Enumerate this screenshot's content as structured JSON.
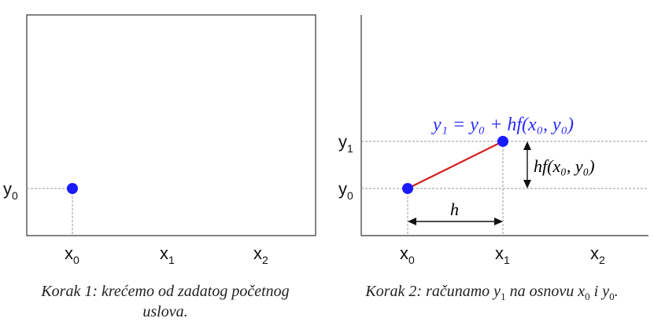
{
  "panel1": {
    "x_labels": [
      {
        "base": "x",
        "sub": "0"
      },
      {
        "base": "x",
        "sub": "1"
      },
      {
        "base": "x",
        "sub": "2"
      }
    ],
    "y_labels": [
      {
        "base": "y",
        "sub": "0"
      }
    ],
    "caption_line1": "Korak 1: krećemo od zadatog početnog",
    "caption_line2": "uslova."
  },
  "panel2": {
    "x_labels": [
      {
        "base": "x",
        "sub": "0"
      },
      {
        "base": "x",
        "sub": "1"
      },
      {
        "base": "x",
        "sub": "2"
      }
    ],
    "y_labels": [
      {
        "base": "y",
        "sub": "0"
      },
      {
        "base": "y",
        "sub": "1"
      }
    ],
    "formula": "y₁ = y₀ + hf(x₀, y₀)",
    "step_label": "h",
    "rise_label": "hf(x₀, y₀)",
    "caption_prefix": "Korak 2: računamo ",
    "caption_y": "y",
    "caption_y_sub": "1",
    "caption_mid": " na osnovu ",
    "caption_x": "x",
    "caption_x_sub": "0",
    "caption_and": " i ",
    "caption_y2": "y",
    "caption_y2_sub": "0",
    "caption_end": "."
  },
  "colors": {
    "point": "#1a1aff",
    "segment": "#d42020",
    "formula": "#2a2aff",
    "grid": "#9a9a9a"
  }
}
